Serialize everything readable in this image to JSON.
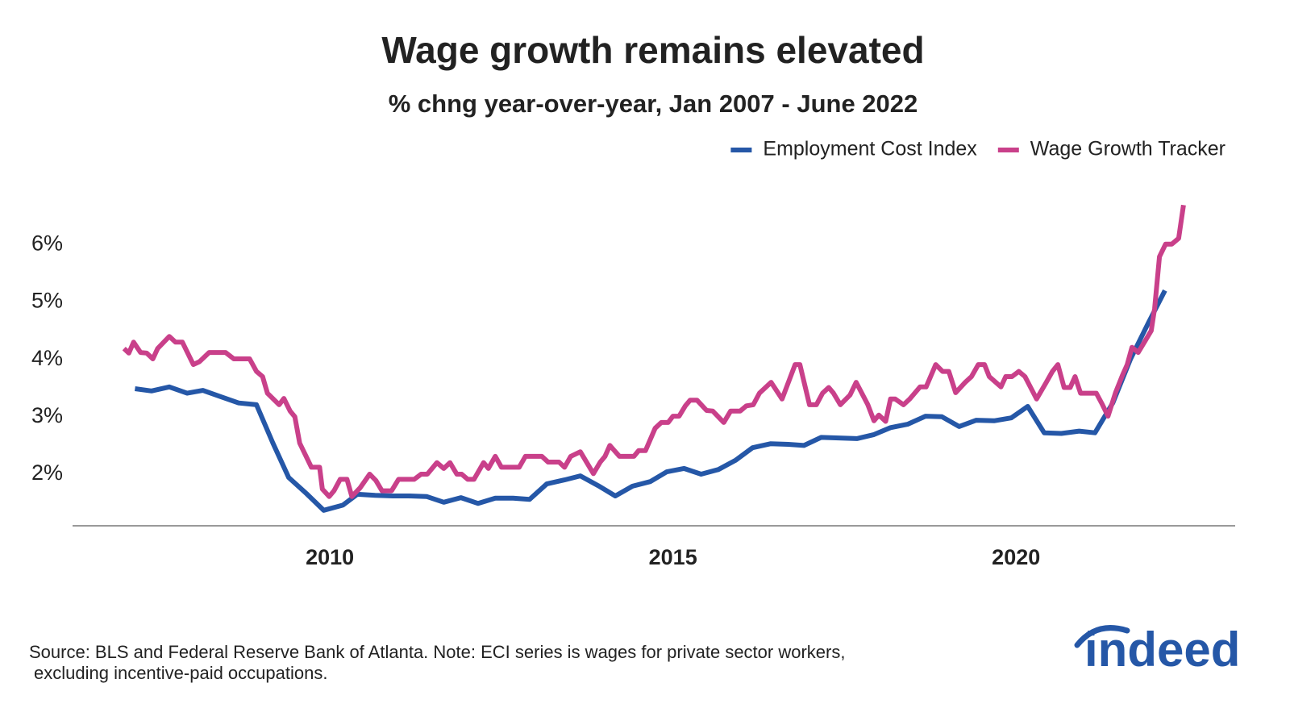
{
  "chart_data": {
    "type": "line",
    "title": "Wage growth remains elevated",
    "subtitle": "% chng year-over-year, Jan 2007 - June 2022",
    "source": [
      "Source: BLS and Federal Reserve Bank of Atlanta. Note: ECI series is wages for private sector workers,",
      "excluding incentive-paid occupations."
    ],
    "logo": "indeed",
    "legend": "top-right",
    "grid": false,
    "xlim": [
      2006.25,
      2023.17
    ],
    "xticks": [
      2010,
      2015,
      2020
    ],
    "ylim": [
      1.1,
      7.2
    ],
    "yticks": [
      {
        "value": 2,
        "label": "2%"
      },
      {
        "value": 3,
        "label": "3%"
      },
      {
        "value": 4,
        "label": "4%"
      },
      {
        "value": 5,
        "label": "5%"
      },
      {
        "value": 6,
        "label": "6%"
      }
    ],
    "series": [
      {
        "name": "Employment Cost Index",
        "color": "#2557a7",
        "x": [
          2007.16,
          2007.4,
          2007.66,
          2007.92,
          2008.15,
          2008.41,
          2008.67,
          2008.93,
          2009.17,
          2009.4,
          2009.66,
          2009.91,
          2010.19,
          2010.4,
          2010.66,
          2010.92,
          2011.15,
          2011.41,
          2011.66,
          2011.91,
          2012.16,
          2012.41,
          2012.67,
          2012.91,
          2013.16,
          2013.42,
          2013.65,
          2013.91,
          2014.16,
          2014.41,
          2014.67,
          2014.91,
          2015.16,
          2015.41,
          2015.66,
          2015.91,
          2016.16,
          2016.42,
          2016.68,
          2016.91,
          2017.16,
          2017.42,
          2017.68,
          2017.93,
          2018.17,
          2018.42,
          2018.68,
          2018.92,
          2019.17,
          2019.42,
          2019.68,
          2019.93,
          2020.17,
          2020.41,
          2020.66,
          2020.92,
          2021.15,
          2021.41,
          2021.67,
          2021.93,
          2022.17
        ],
        "values": [
          3.49,
          3.45,
          3.52,
          3.41,
          3.46,
          3.35,
          3.24,
          3.21,
          2.54,
          1.94,
          1.66,
          1.37,
          1.46,
          1.65,
          1.63,
          1.62,
          1.62,
          1.61,
          1.51,
          1.59,
          1.49,
          1.58,
          1.58,
          1.56,
          1.83,
          1.9,
          1.97,
          1.8,
          1.62,
          1.79,
          1.87,
          2.04,
          2.1,
          2.0,
          2.08,
          2.24,
          2.46,
          2.53,
          2.52,
          2.5,
          2.64,
          2.63,
          2.62,
          2.69,
          2.81,
          2.87,
          3.01,
          3.0,
          2.83,
          2.94,
          2.93,
          2.98,
          3.18,
          2.72,
          2.71,
          2.75,
          2.72,
          3.24,
          4.01,
          4.64,
          5.2
        ]
      },
      {
        "name": "Wage Growth Tracker",
        "color": "#c9408a",
        "x": [
          2007.0,
          2007.07,
          2007.14,
          2007.24,
          2007.33,
          2007.42,
          2007.49,
          2007.66,
          2007.75,
          2007.85,
          2008.01,
          2008.1,
          2008.24,
          2008.48,
          2008.6,
          2008.83,
          2008.93,
          2009.02,
          2009.09,
          2009.26,
          2009.33,
          2009.42,
          2009.49,
          2009.56,
          2009.73,
          2009.85,
          2009.89,
          2009.99,
          2010.06,
          2010.15,
          2010.25,
          2010.32,
          2010.44,
          2010.58,
          2010.67,
          2010.76,
          2010.9,
          2011.0,
          2011.23,
          2011.33,
          2011.42,
          2011.56,
          2011.66,
          2011.75,
          2011.85,
          2011.92,
          2012.01,
          2012.1,
          2012.24,
          2012.31,
          2012.41,
          2012.5,
          2012.76,
          2012.85,
          2013.09,
          2013.18,
          2013.34,
          2013.42,
          2013.51,
          2013.65,
          2013.84,
          2013.94,
          2014.01,
          2014.08,
          2014.22,
          2014.43,
          2014.5,
          2014.6,
          2014.74,
          2014.83,
          2014.93,
          2015.0,
          2015.09,
          2015.18,
          2015.25,
          2015.35,
          2015.49,
          2015.58,
          2015.74,
          2015.84,
          2015.98,
          2016.07,
          2016.17,
          2016.26,
          2016.43,
          2016.59,
          2016.78,
          2016.85,
          2016.99,
          2017.09,
          2017.18,
          2017.27,
          2017.34,
          2017.44,
          2017.58,
          2017.67,
          2017.84,
          2017.93,
          2018.0,
          2018.1,
          2018.17,
          2018.24,
          2018.36,
          2018.45,
          2018.6,
          2018.69,
          2018.83,
          2018.93,
          2019.02,
          2019.12,
          2019.26,
          2019.35,
          2019.45,
          2019.54,
          2019.61,
          2019.78,
          2019.85,
          2019.94,
          2020.04,
          2020.13,
          2020.3,
          2020.44,
          2020.53,
          2020.61,
          2020.7,
          2020.79,
          2020.86,
          2020.94,
          2021.17,
          2021.26,
          2021.34,
          2021.45,
          2021.55,
          2021.62,
          2021.69,
          2021.78,
          2021.87,
          2021.97,
          2022.02,
          2022.09,
          2022.18,
          2022.27,
          2022.37,
          2022.44
        ],
        "values": [
          4.19,
          4.11,
          4.3,
          4.12,
          4.11,
          4.01,
          4.19,
          4.4,
          4.3,
          4.3,
          3.91,
          3.96,
          4.12,
          4.12,
          4.01,
          4.01,
          3.79,
          3.7,
          3.41,
          3.21,
          3.32,
          3.1,
          3.0,
          2.54,
          2.12,
          2.12,
          1.74,
          1.61,
          1.71,
          1.91,
          1.91,
          1.61,
          1.76,
          2.0,
          1.89,
          1.71,
          1.71,
          1.91,
          1.91,
          2.0,
          2.0,
          2.2,
          2.1,
          2.2,
          2.0,
          2.0,
          1.91,
          1.91,
          2.2,
          2.1,
          2.31,
          2.12,
          2.12,
          2.31,
          2.31,
          2.21,
          2.21,
          2.12,
          2.31,
          2.39,
          2.01,
          2.21,
          2.31,
          2.5,
          2.31,
          2.31,
          2.41,
          2.41,
          2.8,
          2.9,
          2.9,
          3.01,
          3.01,
          3.19,
          3.29,
          3.29,
          3.11,
          3.1,
          2.9,
          3.1,
          3.1,
          3.19,
          3.21,
          3.41,
          3.6,
          3.31,
          3.91,
          3.91,
          3.21,
          3.21,
          3.41,
          3.51,
          3.41,
          3.21,
          3.38,
          3.6,
          3.21,
          2.93,
          3.03,
          2.92,
          3.31,
          3.31,
          3.21,
          3.31,
          3.52,
          3.52,
          3.91,
          3.79,
          3.79,
          3.42,
          3.6,
          3.7,
          3.91,
          3.91,
          3.7,
          3.52,
          3.7,
          3.7,
          3.79,
          3.7,
          3.31,
          3.6,
          3.79,
          3.91,
          3.51,
          3.51,
          3.7,
          3.41,
          3.41,
          3.21,
          3.01,
          3.42,
          3.72,
          3.91,
          4.21,
          4.12,
          4.3,
          4.5,
          4.89,
          5.79,
          6.01,
          6.01,
          6.11,
          6.69
        ]
      }
    ]
  }
}
